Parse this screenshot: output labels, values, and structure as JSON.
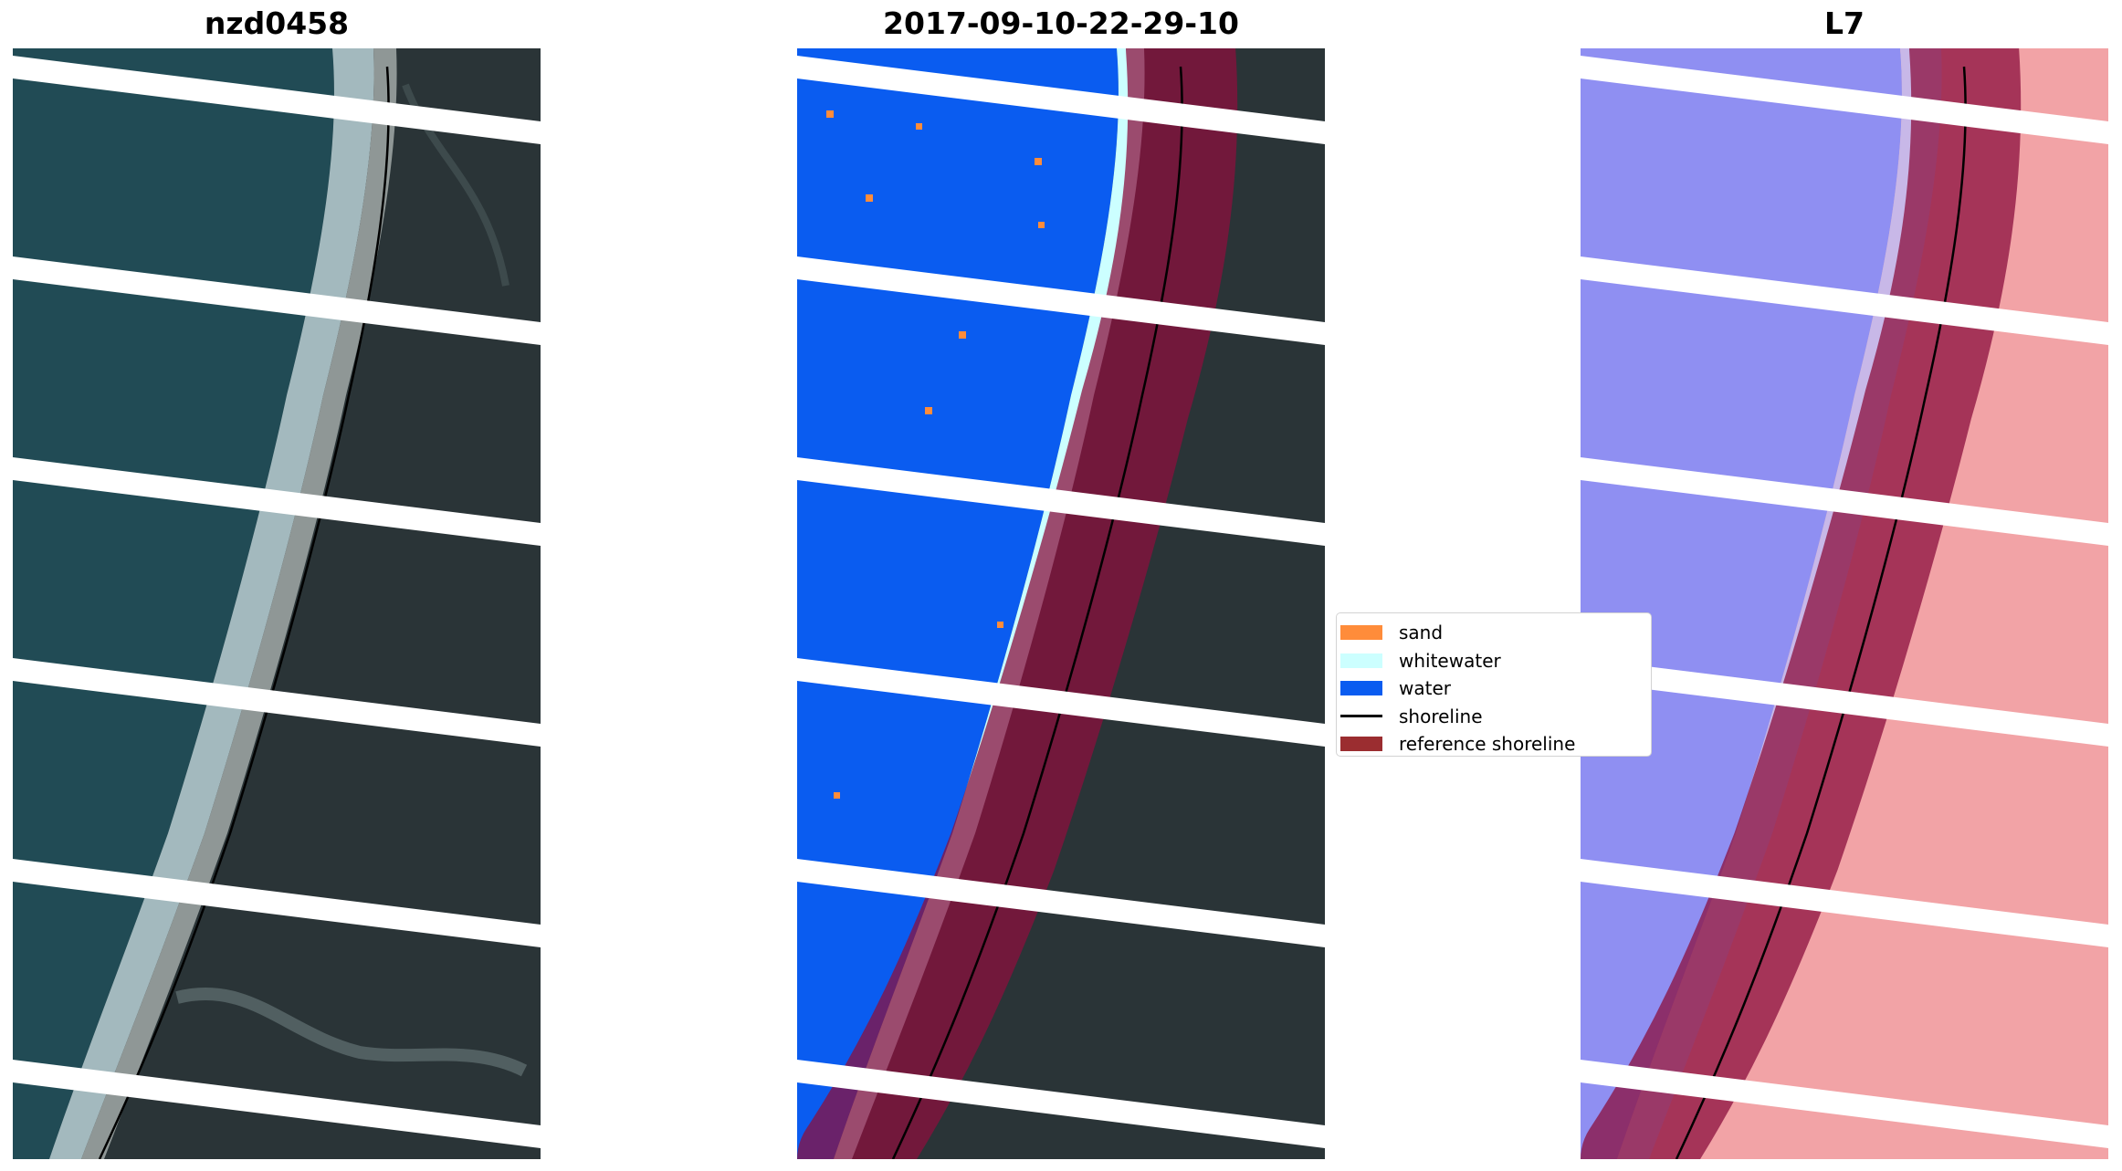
{
  "panels": [
    {
      "title": "nzd0458",
      "image": "rgb-satellite-image"
    },
    {
      "title": "2017-09-10-22-29-10",
      "image": "classified-image"
    },
    {
      "title": "L7",
      "image": "mndwi-image"
    }
  ],
  "legend": {
    "items": [
      {
        "label": "sand",
        "color": "#ff8c3a",
        "kind": "patch"
      },
      {
        "label": "whitewater",
        "color": "#ccffff",
        "kind": "patch"
      },
      {
        "label": "water",
        "color": "#0a5cf0",
        "kind": "patch"
      },
      {
        "label": "shoreline",
        "color": "#000000",
        "kind": "line"
      },
      {
        "label": "reference shoreline",
        "color": "#9b2d30",
        "kind": "patch"
      }
    ]
  },
  "colors": {
    "land": "#2a3437",
    "ocean": "#214b55",
    "surf": "#c7dbe0",
    "beach": "#9da2a0",
    "scanline_gap": "#ffffff",
    "reference_band": "#8b0f3e",
    "index_water": "#8f8ff2",
    "index_land": "#f2a3a6"
  }
}
